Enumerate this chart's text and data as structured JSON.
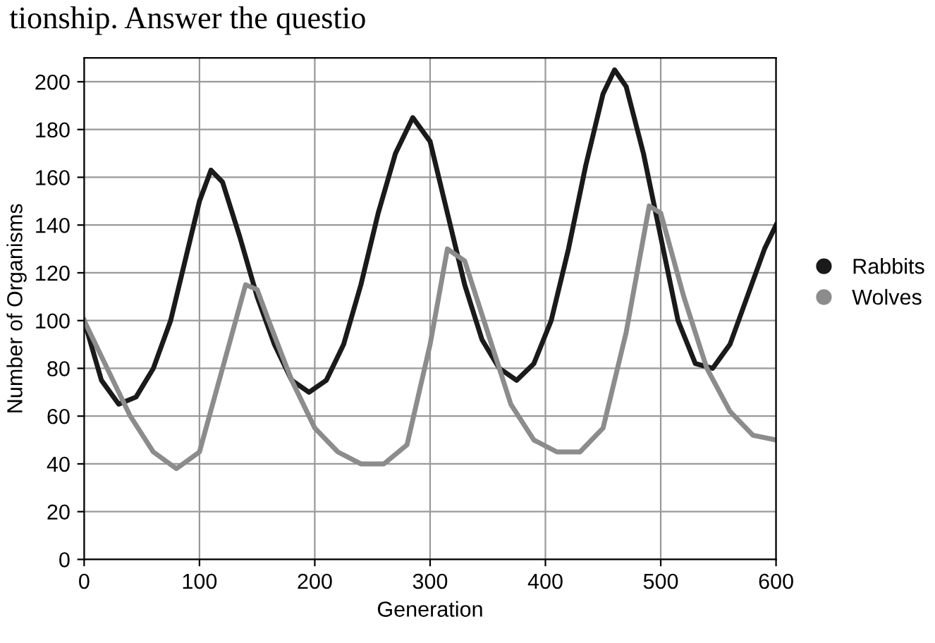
{
  "chart_data": {
    "type": "line",
    "xlabel": "Generation",
    "ylabel": "Number of Organisms",
    "annotations": [
      "tionship. Answer the questio"
    ],
    "series": [
      {
        "name": "Rabbits",
        "color": "#1a1a1a",
        "x": [
          0,
          15,
          30,
          45,
          60,
          75,
          90,
          100,
          110,
          120,
          135,
          150,
          165,
          180,
          195,
          210,
          225,
          240,
          255,
          270,
          285,
          300,
          315,
          330,
          345,
          360,
          375,
          390,
          405,
          420,
          435,
          450,
          460,
          470,
          485,
          500,
          515,
          530,
          545,
          560,
          575,
          590,
          600
        ],
        "values": [
          100,
          75,
          65,
          68,
          80,
          100,
          130,
          150,
          163,
          158,
          135,
          110,
          90,
          75,
          70,
          75,
          90,
          115,
          145,
          170,
          185,
          175,
          145,
          115,
          92,
          80,
          75,
          82,
          100,
          130,
          165,
          195,
          205,
          198,
          170,
          135,
          100,
          82,
          80,
          90,
          110,
          130,
          140
        ]
      },
      {
        "name": "Wolves",
        "color": "#8c8c8c",
        "x": [
          0,
          20,
          40,
          60,
          80,
          100,
          120,
          140,
          150,
          160,
          180,
          200,
          220,
          240,
          260,
          280,
          300,
          315,
          330,
          350,
          370,
          390,
          410,
          430,
          450,
          470,
          490,
          500,
          520,
          540,
          560,
          580,
          600
        ],
        "values": [
          100,
          80,
          60,
          45,
          38,
          45,
          80,
          115,
          113,
          100,
          75,
          55,
          45,
          40,
          40,
          48,
          90,
          130,
          125,
          95,
          65,
          50,
          45,
          45,
          55,
          95,
          148,
          145,
          110,
          80,
          62,
          52,
          50
        ]
      }
    ],
    "xlim": [
      0,
      600
    ],
    "xticks": [
      0,
      100,
      200,
      300,
      400,
      500,
      600
    ],
    "ylim": [
      0,
      210
    ],
    "yticks": [
      0,
      20,
      40,
      60,
      80,
      100,
      120,
      140,
      160,
      180,
      200
    ],
    "grid": true,
    "legend": "right"
  }
}
